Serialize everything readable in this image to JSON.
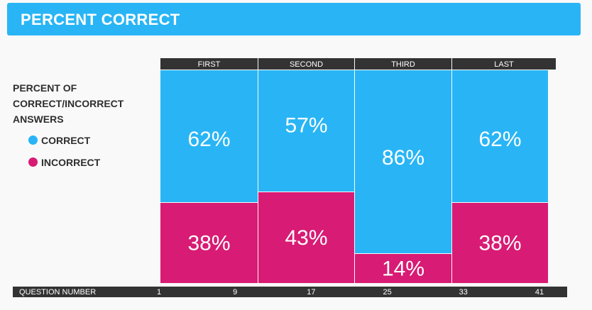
{
  "header": {
    "title": "PERCENT CORRECT"
  },
  "legend": {
    "title": "PERCENT OF\nCORRECT/INCORRECT\nANSWERS",
    "items": [
      {
        "label": "CORRECT",
        "color": "#29b5f5"
      },
      {
        "label": "INCORRECT",
        "color": "#d81b74"
      }
    ]
  },
  "chart_data": {
    "type": "bar",
    "stacked": true,
    "categories": [
      "FIRST",
      "SECOND",
      "THIRD",
      "LAST"
    ],
    "series": [
      {
        "name": "CORRECT",
        "color": "#29b5f5",
        "values": [
          62,
          57,
          86,
          62
        ],
        "labels": [
          "62%",
          "57%",
          "86%",
          "62%"
        ]
      },
      {
        "name": "INCORRECT",
        "color": "#d81b74",
        "values": [
          38,
          43,
          14,
          38
        ],
        "labels": [
          "38%",
          "43%",
          "14%",
          "38%"
        ]
      }
    ],
    "column_ranges": [
      [
        1,
        9
      ],
      [
        9,
        17
      ],
      [
        17,
        25
      ],
      [
        33,
        41
      ]
    ],
    "xlabel": "QUESTION NUMBER",
    "xticks": [
      1,
      9,
      17,
      25,
      33,
      41
    ],
    "ylim": [
      0,
      100
    ]
  }
}
